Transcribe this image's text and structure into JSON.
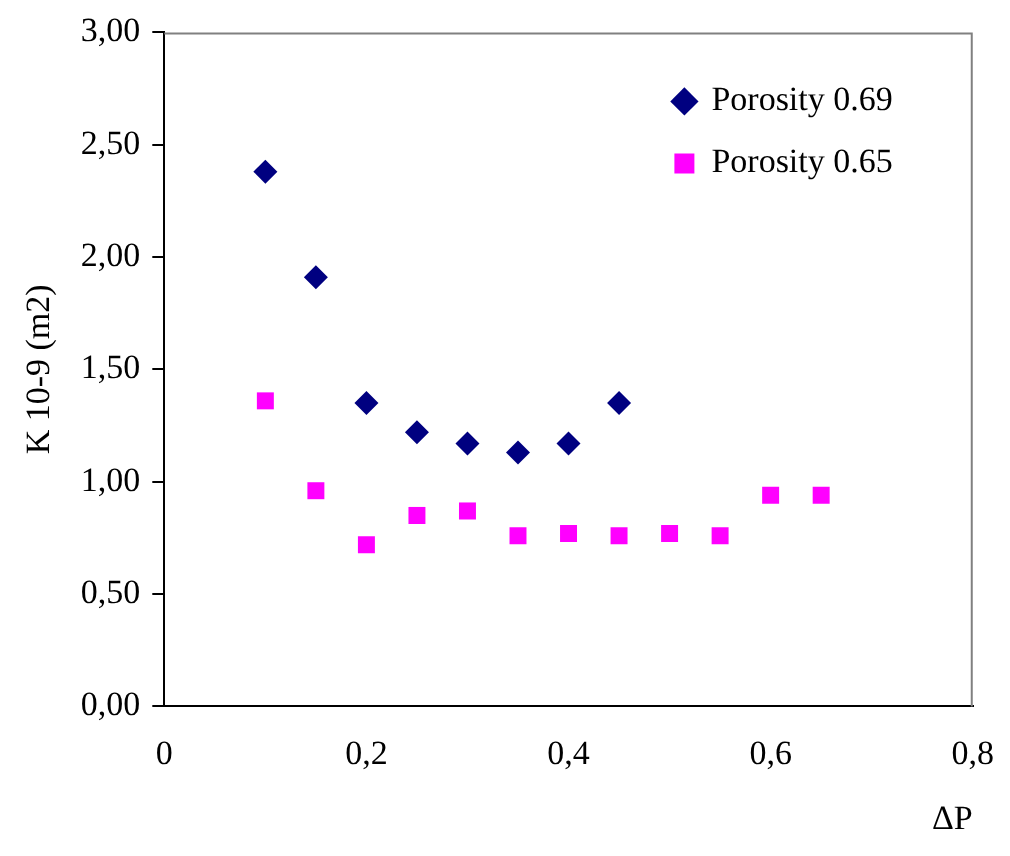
{
  "chart_data": {
    "type": "scatter",
    "xlabel": "ΔP",
    "ylabel": "K 10-9 (m2)",
    "xlim": [
      0,
      0.8
    ],
    "xticks": [
      0,
      {
        "value": 0.2,
        "label": "0,2"
      },
      {
        "value": 0.4,
        "label": "0,4"
      },
      {
        "value": 0.6,
        "label": "0,6"
      },
      {
        "value": 0.8,
        "label": "0,8"
      }
    ],
    "ylim": [
      0,
      3
    ],
    "yticks": [
      {
        "value": 0,
        "label": "0,00"
      },
      {
        "value": 0.5,
        "label": "0,50"
      },
      {
        "value": 1,
        "label": "1,00"
      },
      {
        "value": 1.5,
        "label": "1,50"
      },
      {
        "value": 2,
        "label": "2,00"
      },
      {
        "value": 2.5,
        "label": "2,50"
      },
      {
        "value": 3,
        "label": "3,00"
      }
    ],
    "grid": false,
    "legend": "top right",
    "series": [
      {
        "name": "Porosity 0.69",
        "color": "#000080",
        "marker": "diamond",
        "x": [
          0.1,
          0.15,
          0.2,
          0.25,
          0.3,
          0.35,
          0.4,
          0.45
        ],
        "values": [
          2.38,
          1.91,
          1.35,
          1.22,
          1.17,
          1.13,
          1.17,
          1.35
        ]
      },
      {
        "name": "Porosity 0.65",
        "color": "#ff00ff",
        "marker": "square",
        "x": [
          0.1,
          0.15,
          0.2,
          0.25,
          0.3,
          0.35,
          0.4,
          0.45,
          0.5,
          0.55,
          0.6,
          0.65
        ],
        "values": [
          1.36,
          0.96,
          0.72,
          0.85,
          0.87,
          0.76,
          0.77,
          0.76,
          0.77,
          0.76,
          0.94,
          0.94
        ]
      }
    ]
  }
}
